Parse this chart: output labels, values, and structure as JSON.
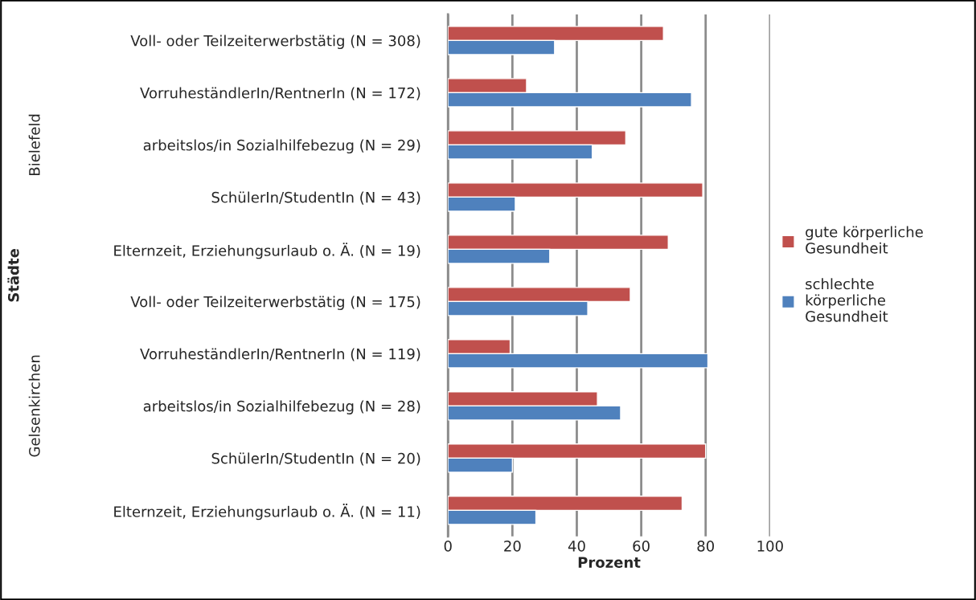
{
  "chart_data": {
    "type": "bar",
    "orientation": "horizontal",
    "xlabel": "Prozent",
    "categories": [
      "Voll- oder Teilzeiterwerbstätig (N = 308)",
      "VorruheständlerIn/RentnerIn (N = 172)",
      "arbeitslos/in Sozialhilfebezug (N = 29)",
      "SchülerIn/StudentIn (N = 43)",
      "Elternzeit, Erziehungsurlaub o. Ä. (N = 19)",
      "Voll- oder Teilzeiterwerbstätig (N = 175)",
      "VorruheständlerIn/RentnerIn (N = 119)",
      "arbeitslos/in Sozialhilfebezug (N = 28)",
      "SchülerIn/StudentIn (N = 20)",
      "Elternzeit, Erziehungsurlaub o. Ä. (N = 11)"
    ],
    "series": [
      {
        "name": "gute körperliche Gesundheit",
        "color": "#c0504d",
        "values": [
          66.9,
          24.4,
          55.2,
          79.1,
          68.4,
          56.6,
          19.3,
          46.4,
          80,
          72.7
        ]
      },
      {
        "name": "schlechte körperliche Gesundheit",
        "color": "#4f81bd",
        "values": [
          33.1,
          75.6,
          44.8,
          20.9,
          31.6,
          43.4,
          80.7,
          53.6,
          20,
          27.3
        ]
      }
    ],
    "xlim": [
      0,
      100
    ],
    "xticks": [
      0,
      20,
      40,
      60,
      80,
      100
    ],
    "grid": "x",
    "legend": "right",
    "annotations": [
      "Städte",
      "Bielefeld",
      "Gelsenkirchen"
    ]
  }
}
